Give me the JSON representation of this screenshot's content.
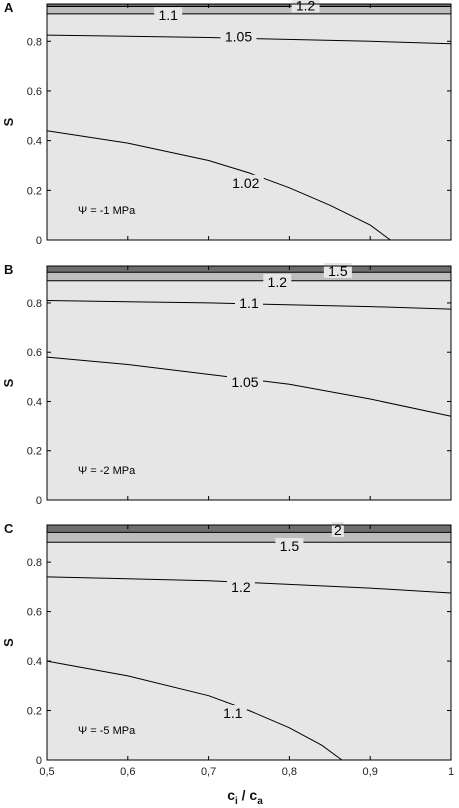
{
  "x_axis": {
    "label": "c",
    "label_sub_i": "i",
    "label_sep": " / c",
    "label_sub_a": "a",
    "ticks": [
      "0,5",
      "0,6",
      "0,7",
      "0,8",
      "0,9",
      "1"
    ]
  },
  "chart_data": [
    {
      "type": "contour",
      "panel_label": "A",
      "annotation": "Ψ = -1 MPa",
      "xlabel": "",
      "ylabel": "S",
      "xlim": [
        0.5,
        1.0
      ],
      "ylim": [
        0,
        0.95
      ],
      "yticks": [
        "0",
        "0.2",
        "0.4",
        "0.6",
        "0.8"
      ],
      "bands": [
        {
          "from": 0.0,
          "to": 0.91,
          "color": "#e6e6e6"
        },
        {
          "from": 0.91,
          "to": 0.94,
          "color": "#bdbdbd"
        },
        {
          "from": 0.94,
          "to": 0.95,
          "color": "#6e6e6e"
        }
      ],
      "contours": [
        {
          "level": "1.02",
          "x": [
            0.5,
            0.6,
            0.7,
            0.75,
            0.8,
            0.85,
            0.9,
            0.925
          ],
          "y": [
            0.44,
            0.39,
            0.32,
            0.27,
            0.21,
            0.14,
            0.06,
            0.0
          ],
          "label_at": [
            0.746,
            0.23
          ]
        },
        {
          "level": "1.05",
          "x": [
            0.5,
            0.7,
            0.9,
            1.0
          ],
          "y": [
            0.825,
            0.815,
            0.8,
            0.79
          ],
          "label_at": [
            0.737,
            0.82
          ]
        },
        {
          "level": "1.1",
          "x": [
            0.5,
            1.0
          ],
          "y": [
            0.91,
            0.91
          ],
          "label_at": [
            0.65,
            0.905
          ]
        },
        {
          "level": "1.2",
          "x": [
            0.5,
            1.0
          ],
          "y": [
            0.94,
            0.94
          ],
          "label_at": [
            0.82,
            0.945
          ]
        }
      ]
    },
    {
      "type": "contour",
      "panel_label": "B",
      "annotation": "Ψ = -2 MPa",
      "xlabel": "",
      "ylabel": "S",
      "xlim": [
        0.5,
        1.0
      ],
      "ylim": [
        0,
        0.95
      ],
      "yticks": [
        "0",
        "0.2",
        "0.4",
        "0.6",
        "0.8"
      ],
      "bands": [
        {
          "from": 0.0,
          "to": 0.89,
          "color": "#e6e6e6"
        },
        {
          "from": 0.89,
          "to": 0.925,
          "color": "#bdbdbd"
        },
        {
          "from": 0.925,
          "to": 0.95,
          "color": "#6e6e6e"
        }
      ],
      "contours": [
        {
          "level": "1.05",
          "x": [
            0.5,
            0.6,
            0.7,
            0.8,
            0.9,
            1.0
          ],
          "y": [
            0.58,
            0.55,
            0.51,
            0.47,
            0.41,
            0.34
          ],
          "label_at": [
            0.745,
            0.48
          ]
        },
        {
          "level": "1.1",
          "x": [
            0.5,
            0.7,
            0.9,
            1.0
          ],
          "y": [
            0.81,
            0.8,
            0.785,
            0.775
          ],
          "label_at": [
            0.75,
            0.8
          ]
        },
        {
          "level": "1.2",
          "x": [
            0.5,
            1.0
          ],
          "y": [
            0.89,
            0.89
          ],
          "label_at": [
            0.785,
            0.885
          ]
        },
        {
          "level": "1.5",
          "x": [
            0.5,
            1.0
          ],
          "y": [
            0.925,
            0.925
          ],
          "label_at": [
            0.86,
            0.93
          ]
        }
      ]
    },
    {
      "type": "contour",
      "panel_label": "C",
      "annotation": "Ψ = -5 MPa",
      "xlabel": "c_i / c_a",
      "ylabel": "S",
      "xlim": [
        0.5,
        1.0
      ],
      "ylim": [
        0,
        0.95
      ],
      "yticks": [
        "0",
        "0.2",
        "0.4",
        "0.6",
        "0.8"
      ],
      "bands": [
        {
          "from": 0.0,
          "to": 0.88,
          "color": "#e6e6e6"
        },
        {
          "from": 0.88,
          "to": 0.92,
          "color": "#bdbdbd"
        },
        {
          "from": 0.92,
          "to": 0.95,
          "color": "#6e6e6e"
        }
      ],
      "contours": [
        {
          "level": "1.1",
          "x": [
            0.5,
            0.6,
            0.7,
            0.75,
            0.8,
            0.84,
            0.865
          ],
          "y": [
            0.4,
            0.34,
            0.26,
            0.2,
            0.13,
            0.06,
            0.0
          ],
          "label_at": [
            0.73,
            0.19
          ]
        },
        {
          "level": "1.2",
          "x": [
            0.5,
            0.7,
            0.9,
            1.0
          ],
          "y": [
            0.74,
            0.725,
            0.695,
            0.675
          ],
          "label_at": [
            0.74,
            0.7
          ]
        },
        {
          "level": "1.5",
          "x": [
            0.5,
            1.0
          ],
          "y": [
            0.88,
            0.88
          ],
          "label_at": [
            0.8,
            0.865
          ]
        },
        {
          "level": "2",
          "x": [
            0.5,
            1.0
          ],
          "y": [
            0.92,
            0.92
          ],
          "label_at": [
            0.86,
            0.93
          ]
        }
      ]
    }
  ]
}
